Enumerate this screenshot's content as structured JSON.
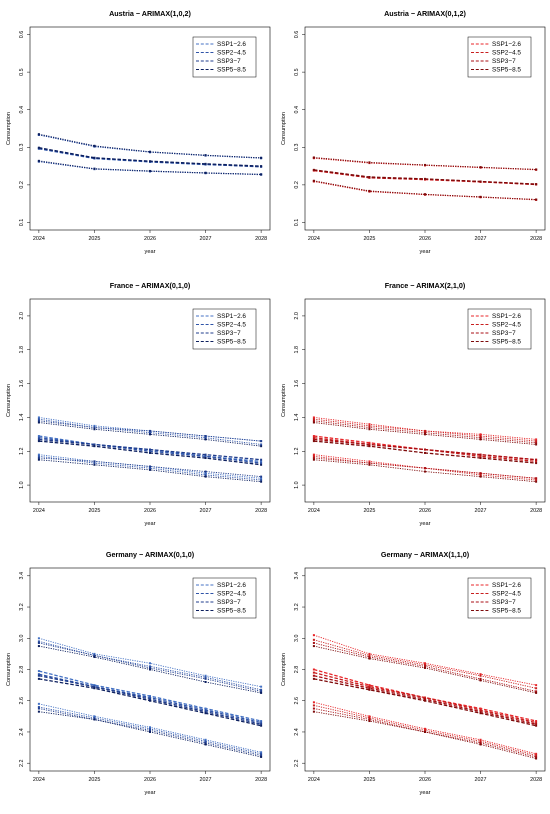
{
  "chart_data": [
    {
      "type": "line",
      "title": "Austria − ARIMAX(1,0,2)",
      "xlabel": "year",
      "ylabel": "Consumption",
      "x": [
        2024,
        2025,
        2026,
        2027,
        2028
      ],
      "ylim": [
        0.08,
        0.62
      ],
      "yticks": [
        0.1,
        0.2,
        0.3,
        0.4,
        0.5,
        0.6
      ],
      "grid": false,
      "legend_position": "top-right",
      "color_theme": "blue",
      "legend": [
        "SSP1−2.6",
        "SSP2−4.5",
        "SSP3−7",
        "SSP5−8.5"
      ],
      "series": [
        {
          "name": "SSP1−2.6",
          "color": "#4472c4",
          "values": [
            0.296,
            0.27,
            0.261,
            0.254,
            0.249
          ],
          "upper": [
            0.333,
            0.302,
            0.287,
            0.278,
            0.271
          ],
          "lower": [
            0.262,
            0.242,
            0.236,
            0.232,
            0.228
          ]
        },
        {
          "name": "SSP2−4.5",
          "color": "#2f54a8",
          "values": [
            0.298,
            0.272,
            0.262,
            0.255,
            0.249
          ],
          "upper": [
            0.334,
            0.303,
            0.288,
            0.279,
            0.272
          ],
          "lower": [
            0.263,
            0.243,
            0.237,
            0.232,
            0.228
          ]
        },
        {
          "name": "SSP3−7",
          "color": "#1f3c8c",
          "values": [
            0.297,
            0.271,
            0.262,
            0.255,
            0.248
          ],
          "upper": [
            0.333,
            0.302,
            0.287,
            0.278,
            0.271
          ],
          "lower": [
            0.262,
            0.242,
            0.236,
            0.231,
            0.227
          ]
        },
        {
          "name": "SSP5−8.5",
          "color": "#0c1f5e",
          "values": [
            0.299,
            0.272,
            0.263,
            0.256,
            0.25
          ],
          "upper": [
            0.335,
            0.304,
            0.288,
            0.279,
            0.272
          ],
          "lower": [
            0.264,
            0.243,
            0.237,
            0.232,
            0.228
          ]
        }
      ]
    },
    {
      "type": "line",
      "title": "Austria − ARIMAX(0,1,2)",
      "xlabel": "year",
      "ylabel": "Consumption",
      "x": [
        2024,
        2025,
        2026,
        2027,
        2028
      ],
      "ylim": [
        0.08,
        0.62
      ],
      "yticks": [
        0.1,
        0.2,
        0.3,
        0.4,
        0.5,
        0.6
      ],
      "grid": false,
      "legend_position": "top-right",
      "color_theme": "red",
      "legend": [
        "SSP1−2.6",
        "SSP2−4.5",
        "SSP3−7",
        "SSP5−8.5"
      ],
      "series": [
        {
          "name": "SSP1−2.6",
          "color": "#e8262a",
          "values": [
            0.238,
            0.219,
            0.214,
            0.208,
            0.201
          ],
          "upper": [
            0.272,
            0.259,
            0.252,
            0.246,
            0.241
          ],
          "lower": [
            0.21,
            0.183,
            0.174,
            0.168,
            0.161
          ]
        },
        {
          "name": "SSP2−4.5",
          "color": "#c81e1e",
          "values": [
            0.239,
            0.22,
            0.215,
            0.208,
            0.202
          ],
          "upper": [
            0.271,
            0.258,
            0.252,
            0.246,
            0.24
          ],
          "lower": [
            0.209,
            0.182,
            0.174,
            0.167,
            0.16
          ]
        },
        {
          "name": "SSP3−7",
          "color": "#a80f14",
          "values": [
            0.239,
            0.219,
            0.215,
            0.209,
            0.201
          ],
          "upper": [
            0.272,
            0.259,
            0.253,
            0.247,
            0.241
          ],
          "lower": [
            0.21,
            0.183,
            0.175,
            0.168,
            0.161
          ]
        },
        {
          "name": "SSP5−8.5",
          "color": "#7d0a0a",
          "values": [
            0.24,
            0.221,
            0.216,
            0.209,
            0.202
          ],
          "upper": [
            0.273,
            0.26,
            0.253,
            0.247,
            0.241
          ],
          "lower": [
            0.211,
            0.184,
            0.175,
            0.168,
            0.161
          ]
        }
      ]
    },
    {
      "type": "line",
      "title": "France − ARIMAX(0,1,0)",
      "xlabel": "year",
      "ylabel": "Consumption",
      "x": [
        2024,
        2025,
        2026,
        2027,
        2028
      ],
      "ylim": [
        0.9,
        2.1
      ],
      "yticks": [
        1.0,
        1.2,
        1.4,
        1.6,
        1.8,
        2.0
      ],
      "grid": false,
      "legend_position": "top-right",
      "color_theme": "blue",
      "legend": [
        "SSP1−2.6",
        "SSP2−4.5",
        "SSP3−7",
        "SSP5−8.5"
      ],
      "series": [
        {
          "name": "SSP1−2.6",
          "color": "#4472c4",
          "values": [
            1.29,
            1.24,
            1.21,
            1.17,
            1.14
          ],
          "upper": [
            1.4,
            1.35,
            1.32,
            1.29,
            1.26
          ],
          "lower": [
            1.18,
            1.14,
            1.11,
            1.07,
            1.04
          ]
        },
        {
          "name": "SSP2−4.5",
          "color": "#2f54a8",
          "values": [
            1.28,
            1.24,
            1.2,
            1.17,
            1.13
          ],
          "upper": [
            1.39,
            1.34,
            1.31,
            1.28,
            1.24
          ],
          "lower": [
            1.17,
            1.13,
            1.1,
            1.06,
            1.03
          ]
        },
        {
          "name": "SSP3−7",
          "color": "#1f3c8c",
          "values": [
            1.27,
            1.24,
            1.21,
            1.18,
            1.15
          ],
          "upper": [
            1.38,
            1.34,
            1.32,
            1.29,
            1.26
          ],
          "lower": [
            1.16,
            1.14,
            1.11,
            1.08,
            1.05
          ]
        },
        {
          "name": "SSP5−8.5",
          "color": "#0c1f5e",
          "values": [
            1.26,
            1.23,
            1.19,
            1.16,
            1.12
          ],
          "upper": [
            1.37,
            1.33,
            1.3,
            1.27,
            1.23
          ],
          "lower": [
            1.15,
            1.12,
            1.09,
            1.05,
            1.02
          ]
        }
      ]
    },
    {
      "type": "line",
      "title": "France − ARIMAX(2,1,0)",
      "xlabel": "year",
      "ylabel": "Consumption",
      "x": [
        2024,
        2025,
        2026,
        2027,
        2028
      ],
      "ylim": [
        0.9,
        2.1
      ],
      "yticks": [
        1.0,
        1.2,
        1.4,
        1.6,
        1.8,
        2.0
      ],
      "grid": false,
      "legend_position": "top-right",
      "color_theme": "red",
      "legend": [
        "SSP1−2.6",
        "SSP2−4.5",
        "SSP3−7",
        "SSP5−8.5"
      ],
      "series": [
        {
          "name": "SSP1−2.6",
          "color": "#e8262a",
          "values": [
            1.29,
            1.25,
            1.21,
            1.18,
            1.15
          ],
          "upper": [
            1.4,
            1.36,
            1.32,
            1.3,
            1.27
          ],
          "lower": [
            1.18,
            1.14,
            1.1,
            1.07,
            1.04
          ]
        },
        {
          "name": "SSP2−4.5",
          "color": "#c81e1e",
          "values": [
            1.28,
            1.24,
            1.21,
            1.17,
            1.14
          ],
          "upper": [
            1.39,
            1.35,
            1.32,
            1.29,
            1.26
          ],
          "lower": [
            1.17,
            1.13,
            1.1,
            1.06,
            1.03
          ]
        },
        {
          "name": "SSP3−7",
          "color": "#a80f14",
          "values": [
            1.27,
            1.24,
            1.21,
            1.18,
            1.15
          ],
          "upper": [
            1.38,
            1.34,
            1.31,
            1.28,
            1.25
          ],
          "lower": [
            1.16,
            1.13,
            1.1,
            1.07,
            1.04
          ]
        },
        {
          "name": "SSP5−8.5",
          "color": "#7d0a0a",
          "values": [
            1.26,
            1.23,
            1.19,
            1.16,
            1.13
          ],
          "upper": [
            1.37,
            1.33,
            1.3,
            1.27,
            1.24
          ],
          "lower": [
            1.15,
            1.12,
            1.08,
            1.05,
            1.02
          ]
        }
      ]
    },
    {
      "type": "line",
      "title": "Germany − ARIMAX(0,1,0)",
      "xlabel": "year",
      "ylabel": "Consumption",
      "x": [
        2024,
        2025,
        2026,
        2027,
        2028
      ],
      "ylim": [
        2.15,
        3.45
      ],
      "yticks": [
        2.2,
        2.4,
        2.6,
        2.8,
        3.0,
        3.2,
        3.4
      ],
      "grid": false,
      "legend_position": "top-right",
      "color_theme": "blue",
      "legend": [
        "SSP1−2.6",
        "SSP2−4.5",
        "SSP3−7",
        "SSP5−8.5"
      ],
      "series": [
        {
          "name": "SSP1−2.6",
          "color": "#4472c4",
          "values": [
            2.79,
            2.7,
            2.63,
            2.55,
            2.47
          ],
          "upper": [
            3.0,
            2.9,
            2.84,
            2.76,
            2.69
          ],
          "lower": [
            2.58,
            2.5,
            2.43,
            2.35,
            2.27
          ]
        },
        {
          "name": "SSP2−4.5",
          "color": "#2f54a8",
          "values": [
            2.77,
            2.69,
            2.62,
            2.54,
            2.46
          ],
          "upper": [
            2.98,
            2.89,
            2.82,
            2.75,
            2.67
          ],
          "lower": [
            2.56,
            2.49,
            2.42,
            2.34,
            2.26
          ]
        },
        {
          "name": "SSP3−7",
          "color": "#1f3c8c",
          "values": [
            2.76,
            2.69,
            2.61,
            2.53,
            2.45
          ],
          "upper": [
            2.97,
            2.89,
            2.81,
            2.74,
            2.66
          ],
          "lower": [
            2.55,
            2.48,
            2.41,
            2.33,
            2.25
          ]
        },
        {
          "name": "SSP5−8.5",
          "color": "#0c1f5e",
          "values": [
            2.74,
            2.68,
            2.6,
            2.52,
            2.44
          ],
          "upper": [
            2.95,
            2.88,
            2.8,
            2.72,
            2.65
          ],
          "lower": [
            2.53,
            2.48,
            2.4,
            2.32,
            2.24
          ]
        }
      ]
    },
    {
      "type": "line",
      "title": "Germany − ARIMAX(1,1,0)",
      "xlabel": "year",
      "ylabel": "Consumption",
      "x": [
        2024,
        2025,
        2026,
        2027,
        2028
      ],
      "ylim": [
        2.15,
        3.45
      ],
      "yticks": [
        2.2,
        2.4,
        2.6,
        2.8,
        3.0,
        3.2,
        3.4
      ],
      "grid": false,
      "legend_position": "top-right",
      "color_theme": "red",
      "legend": [
        "SSP1−2.6",
        "SSP2−4.5",
        "SSP3−7",
        "SSP5−8.5"
      ],
      "series": [
        {
          "name": "SSP1−2.6",
          "color": "#e8262a",
          "values": [
            2.8,
            2.7,
            2.62,
            2.55,
            2.47
          ],
          "upper": [
            3.02,
            2.9,
            2.84,
            2.77,
            2.7
          ],
          "lower": [
            2.59,
            2.5,
            2.42,
            2.35,
            2.26
          ]
        },
        {
          "name": "SSP2−4.5",
          "color": "#c81e1e",
          "values": [
            2.78,
            2.69,
            2.62,
            2.54,
            2.46
          ],
          "upper": [
            2.99,
            2.89,
            2.83,
            2.76,
            2.68
          ],
          "lower": [
            2.57,
            2.49,
            2.41,
            2.34,
            2.25
          ]
        },
        {
          "name": "SSP3−7",
          "color": "#a80f14",
          "values": [
            2.76,
            2.68,
            2.61,
            2.53,
            2.45
          ],
          "upper": [
            2.97,
            2.88,
            2.82,
            2.74,
            2.66
          ],
          "lower": [
            2.55,
            2.48,
            2.4,
            2.33,
            2.24
          ]
        },
        {
          "name": "SSP5−8.5",
          "color": "#7d0a0a",
          "values": [
            2.74,
            2.67,
            2.6,
            2.52,
            2.44
          ],
          "upper": [
            2.95,
            2.87,
            2.81,
            2.73,
            2.65
          ],
          "lower": [
            2.53,
            2.47,
            2.4,
            2.32,
            2.23
          ]
        }
      ]
    }
  ]
}
